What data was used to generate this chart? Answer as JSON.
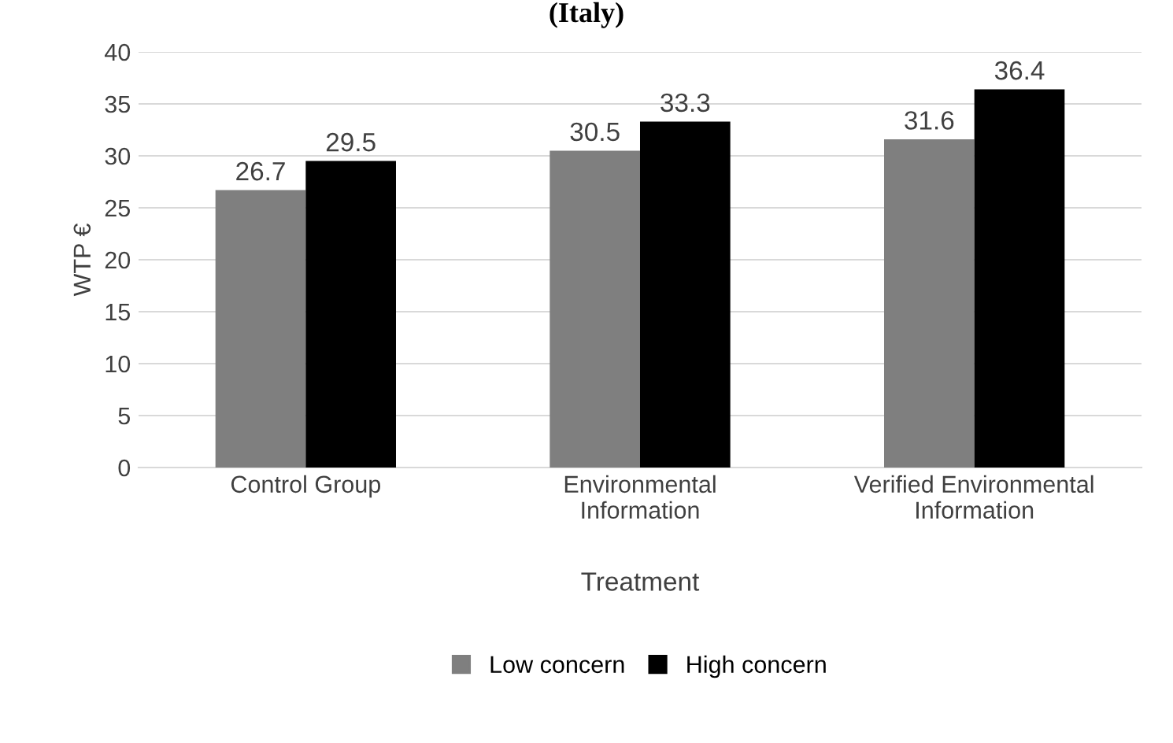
{
  "chart_data": {
    "type": "bar",
    "title": "(Italy)",
    "xlabel": "Treatment",
    "ylabel": "WTP €",
    "categories": [
      "Control Group",
      "Environmental\nInformation",
      "Verified Environmental\nInformation"
    ],
    "series": [
      {
        "name": "Low concern",
        "color": "#7f7f7f",
        "values": [
          26.7,
          30.5,
          31.6
        ]
      },
      {
        "name": "High concern",
        "color": "#000000",
        "values": [
          29.5,
          33.3,
          36.4
        ]
      }
    ],
    "ylim": [
      0,
      40
    ],
    "yticks": [
      0,
      5,
      10,
      15,
      20,
      25,
      30,
      35,
      40
    ],
    "grid": "y",
    "legend": "bottom",
    "data_labels": true
  }
}
